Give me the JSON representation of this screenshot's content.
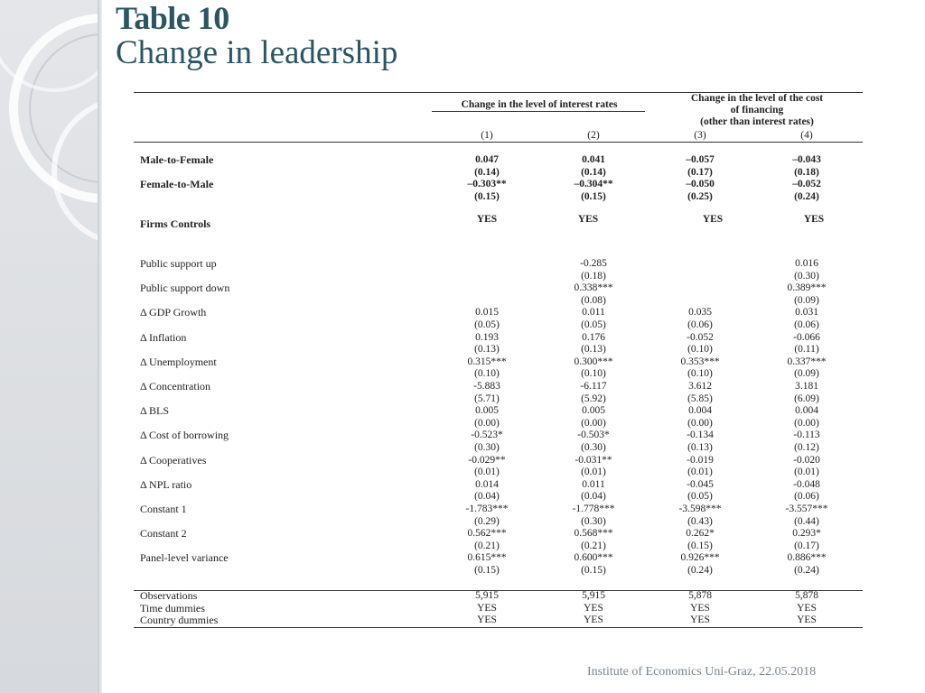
{
  "slide": {
    "title": "Table 10",
    "subtitle": "Change in leadership",
    "footer": "Institute of Economics Uni-Graz, 22.05.2018"
  },
  "table": {
    "group_header_1": "Change in the level of interest rates",
    "group_header_2_line1": "Change in the level of the cost",
    "group_header_2_line2": "of financing",
    "group_header_2_line3": "(other than interest rates)",
    "col_numbers": [
      "(1)",
      "(2)",
      "(3)",
      "(4)"
    ],
    "bold_rows": [
      {
        "label": "Male-to-Female",
        "vals": [
          "0.047",
          "0.041",
          "–0.057",
          "–0.043"
        ]
      },
      {
        "label": "",
        "vals": [
          "(0.14)",
          "(0.14)",
          "(0.17)",
          "(0.18)"
        ]
      },
      {
        "label": "Female-to-Male",
        "vals": [
          "–0.303**",
          "–0.304**",
          "–0.050",
          "–0.052"
        ]
      },
      {
        "label": "",
        "vals": [
          "(0.15)",
          "(0.15)",
          "(0.25)",
          "(0.24)"
        ]
      }
    ],
    "firms_controls": {
      "label": "Firms Controls",
      "vals": [
        "YES",
        "YES",
        "YES",
        "YES"
      ]
    },
    "rows": [
      {
        "label": "Public support up",
        "vals": [
          "",
          "-0.285",
          "",
          "0.016"
        ]
      },
      {
        "label": "",
        "vals": [
          "",
          "(0.18)",
          "",
          "(0.30)"
        ]
      },
      {
        "label": "Public support down",
        "vals": [
          "",
          "0.338***",
          "",
          "0.389***"
        ]
      },
      {
        "label": "",
        "vals": [
          "",
          "(0.08)",
          "",
          "(0.09)"
        ]
      },
      {
        "label": "Δ GDP Growth",
        "vals": [
          "0.015",
          "0.011",
          "0.035",
          "0.031"
        ]
      },
      {
        "label": "",
        "vals": [
          "(0.05)",
          "(0.05)",
          "(0.06)",
          "(0.06)"
        ]
      },
      {
        "label": "Δ Inflation",
        "vals": [
          "0.193",
          "0.176",
          "-0.052",
          "-0.066"
        ]
      },
      {
        "label": "",
        "vals": [
          "(0.13)",
          "(0.13)",
          "(0.10)",
          "(0.11)"
        ]
      },
      {
        "label": "Δ Unemployment",
        "vals": [
          "0.315***",
          "0.300***",
          "0.353***",
          "0.337***"
        ]
      },
      {
        "label": "",
        "vals": [
          "(0.10)",
          "(0.10)",
          "(0.10)",
          "(0.09)"
        ]
      },
      {
        "label": "Δ Concentration",
        "vals": [
          "-5.883",
          "-6.117",
          "3.612",
          "3.181"
        ]
      },
      {
        "label": "",
        "vals": [
          "(5.71)",
          "(5.92)",
          "(5.85)",
          "(6.09)"
        ]
      },
      {
        "label": "Δ BLS",
        "vals": [
          "0.005",
          "0.005",
          "0.004",
          "0.004"
        ]
      },
      {
        "label": "",
        "vals": [
          "(0.00)",
          "(0.00)",
          "(0.00)",
          "(0.00)"
        ]
      },
      {
        "label": "Δ Cost of borrowing",
        "vals": [
          "-0.523*",
          "-0.503*",
          "-0.134",
          "-0.113"
        ]
      },
      {
        "label": "",
        "vals": [
          "(0.30)",
          "(0.30)",
          "(0.13)",
          "(0.12)"
        ]
      },
      {
        "label": "Δ Cooperatives",
        "vals": [
          "-0.029**",
          "-0.031**",
          "-0.019",
          "-0.020"
        ]
      },
      {
        "label": "",
        "vals": [
          "(0.01)",
          "(0.01)",
          "(0.01)",
          "(0.01)"
        ]
      },
      {
        "label": "Δ NPL ratio",
        "vals": [
          "0.014",
          "0.011",
          "-0.045",
          "-0.048"
        ]
      },
      {
        "label": "",
        "vals": [
          "(0.04)",
          "(0.04)",
          "(0.05)",
          "(0.06)"
        ]
      },
      {
        "label": "Constant 1",
        "vals": [
          "-1.783***",
          "-1.778***",
          "-3.598***",
          "-3.557***"
        ]
      },
      {
        "label": "",
        "vals": [
          "(0.29)",
          "(0.30)",
          "(0.43)",
          "(0.44)"
        ]
      },
      {
        "label": "Constant 2",
        "vals": [
          "0.562***",
          "0.568***",
          "0.262*",
          "0.293*"
        ]
      },
      {
        "label": "",
        "vals": [
          "(0.21)",
          "(0.21)",
          "(0.15)",
          "(0.17)"
        ]
      },
      {
        "label": "Panel-level variance",
        "vals": [
          "0.615***",
          "0.600***",
          "0.926***",
          "0.886***"
        ]
      },
      {
        "label": "",
        "vals": [
          "(0.15)",
          "(0.15)",
          "(0.24)",
          "(0.24)"
        ]
      }
    ],
    "footer_rows": [
      {
        "label": "Observations",
        "vals": [
          "5,915",
          "5,915",
          "5,878",
          "5,878"
        ]
      },
      {
        "label": "Time dummies",
        "vals": [
          "YES",
          "YES",
          "YES",
          "YES"
        ]
      },
      {
        "label": "Country dummies",
        "vals": [
          "YES",
          "YES",
          "YES",
          "YES"
        ]
      }
    ]
  }
}
